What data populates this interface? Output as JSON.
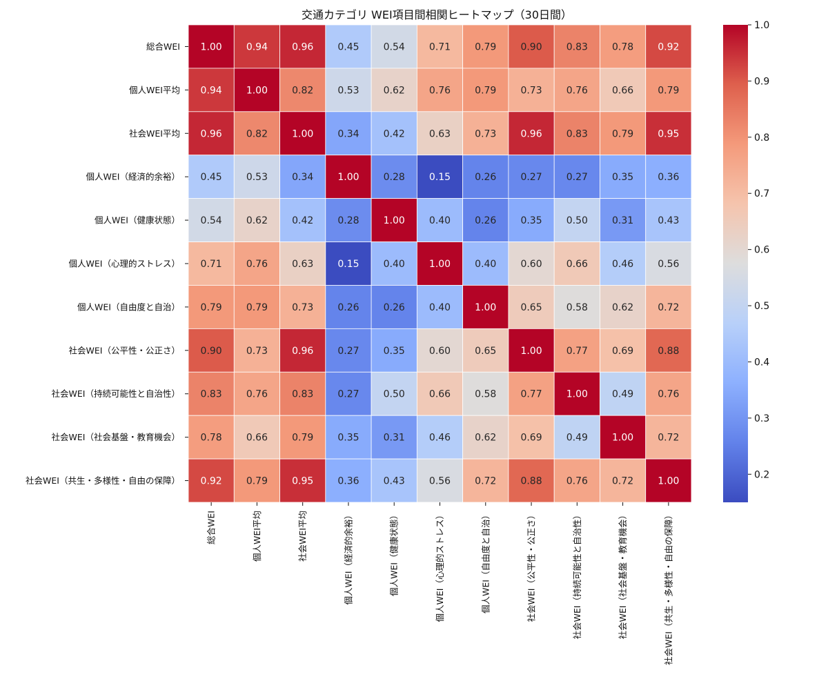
{
  "chart_data": {
    "type": "heatmap",
    "title": "交通カテゴリ WEI項目間相関ヒートマップ（30日間）",
    "rows": [
      "総合WEI",
      "個人WEI平均",
      "社会WEI平均",
      "個人WEI（経済的余裕）",
      "個人WEI（健康状態）",
      "個人WEI（心理的ストレス）",
      "個人WEI（自由度と自治）",
      "社会WEI（公平性・公正さ）",
      "社会WEI（持続可能性と自治性）",
      "社会WEI（社会基盤・教育機会）",
      "社会WEI（共生・多様性・自由の保障）"
    ],
    "columns": [
      "総合WEI",
      "個人WEI平均",
      "社会WEI平均",
      "個人WEI（経済的余裕）",
      "個人WEI（健康状態）",
      "個人WEI（心理的ストレス）",
      "個人WEI（自由度と自治）",
      "社会WEI（公平性・公正さ）",
      "社会WEI（持続可能性と自治性）",
      "社会WEI（社会基盤・教育機会）",
      "社会WEI（共生・多様性・自由の保障）"
    ],
    "values": [
      [
        1.0,
        0.94,
        0.96,
        0.45,
        0.54,
        0.71,
        0.79,
        0.9,
        0.83,
        0.78,
        0.92
      ],
      [
        0.94,
        1.0,
        0.82,
        0.53,
        0.62,
        0.76,
        0.79,
        0.73,
        0.76,
        0.66,
        0.79
      ],
      [
        0.96,
        0.82,
        1.0,
        0.34,
        0.42,
        0.63,
        0.73,
        0.96,
        0.83,
        0.79,
        0.95
      ],
      [
        0.45,
        0.53,
        0.34,
        1.0,
        0.28,
        0.15,
        0.26,
        0.27,
        0.27,
        0.35,
        0.36
      ],
      [
        0.54,
        0.62,
        0.42,
        0.28,
        1.0,
        0.4,
        0.26,
        0.35,
        0.5,
        0.31,
        0.43
      ],
      [
        0.71,
        0.76,
        0.63,
        0.15,
        0.4,
        1.0,
        0.4,
        0.6,
        0.66,
        0.46,
        0.56
      ],
      [
        0.79,
        0.79,
        0.73,
        0.26,
        0.26,
        0.4,
        1.0,
        0.65,
        0.58,
        0.62,
        0.72
      ],
      [
        0.9,
        0.73,
        0.96,
        0.27,
        0.35,
        0.6,
        0.65,
        1.0,
        0.77,
        0.69,
        0.88
      ],
      [
        0.83,
        0.76,
        0.83,
        0.27,
        0.5,
        0.66,
        0.58,
        0.77,
        1.0,
        0.49,
        0.76
      ],
      [
        0.78,
        0.66,
        0.79,
        0.35,
        0.31,
        0.46,
        0.62,
        0.69,
        0.49,
        1.0,
        0.72
      ],
      [
        0.92,
        0.79,
        0.95,
        0.36,
        0.43,
        0.56,
        0.72,
        0.88,
        0.76,
        0.72,
        1.0
      ]
    ],
    "colormap": "coolwarm",
    "vmin": 0.15,
    "vmax": 1.0,
    "colorbar_ticks": [
      0.2,
      0.3,
      0.4,
      0.5,
      0.6,
      0.7,
      0.8,
      0.9,
      1.0
    ],
    "annotation_format": "0.00",
    "xlabel": "",
    "ylabel": ""
  }
}
